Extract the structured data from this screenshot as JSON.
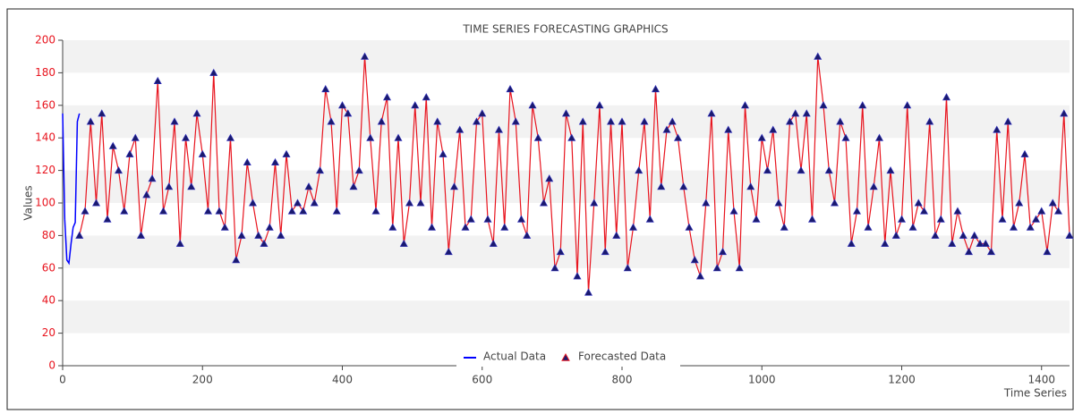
{
  "chart_data": {
    "type": "line",
    "title": "TIME SERIES FORECASTING GRAPHICS",
    "x_label": "Time Series",
    "y_label": "Values",
    "xlim": [
      0,
      1440
    ],
    "ylim": [
      0,
      200
    ],
    "xticks": [
      0,
      200,
      400,
      600,
      800,
      1000,
      1200,
      1400
    ],
    "yticks": [
      0,
      20,
      40,
      60,
      80,
      100,
      120,
      140,
      160,
      180,
      200
    ],
    "series": [
      {
        "name": "Actual Data",
        "color": "#0000ff",
        "x": [
          0,
          3,
          6,
          9,
          12,
          15,
          18,
          21,
          24
        ],
        "values": [
          155,
          90,
          65,
          63,
          75,
          85,
          88,
          150,
          155
        ]
      },
      {
        "name": "Forecasted Data",
        "color": "#e8141e",
        "marker_color": "#1a1a6e",
        "x_start": 24,
        "x_step": 8,
        "values": [
          80,
          95,
          150,
          100,
          155,
          90,
          135,
          120,
          95,
          130,
          140,
          80,
          105,
          115,
          175,
          95,
          110,
          150,
          75,
          140,
          110,
          155,
          130,
          95,
          180,
          95,
          85,
          140,
          65,
          80,
          125,
          100,
          80,
          75,
          85,
          125,
          80,
          130,
          95,
          100,
          95,
          110,
          100,
          120,
          170,
          150,
          95,
          160,
          155,
          110,
          120,
          190,
          140,
          95,
          150,
          165,
          85,
          140,
          75,
          100,
          160,
          100,
          165,
          85,
          150,
          130,
          70,
          110,
          145,
          85,
          90,
          150,
          155,
          90,
          75,
          145,
          85,
          170,
          150,
          90,
          80,
          160,
          140,
          100,
          115,
          60,
          70,
          155,
          140,
          55,
          150,
          45,
          100,
          160,
          70,
          150,
          80,
          150,
          60,
          85,
          120,
          150,
          90,
          170,
          110,
          145,
          150,
          140,
          110,
          85,
          65,
          55,
          100,
          155,
          60,
          70,
          145,
          95,
          60,
          160,
          110,
          90,
          140,
          120,
          145,
          100,
          85,
          150,
          155,
          120,
          155,
          90,
          190,
          160,
          120,
          100,
          150,
          140,
          75,
          95,
          160,
          85,
          110,
          140,
          75,
          120,
          80,
          90,
          160,
          85,
          100,
          95,
          150,
          80,
          90,
          165,
          75,
          95,
          80,
          70,
          80,
          75,
          75,
          70,
          145,
          90,
          150,
          85,
          100,
          130,
          85,
          90,
          95,
          70,
          100,
          95,
          155,
          80
        ]
      }
    ]
  }
}
